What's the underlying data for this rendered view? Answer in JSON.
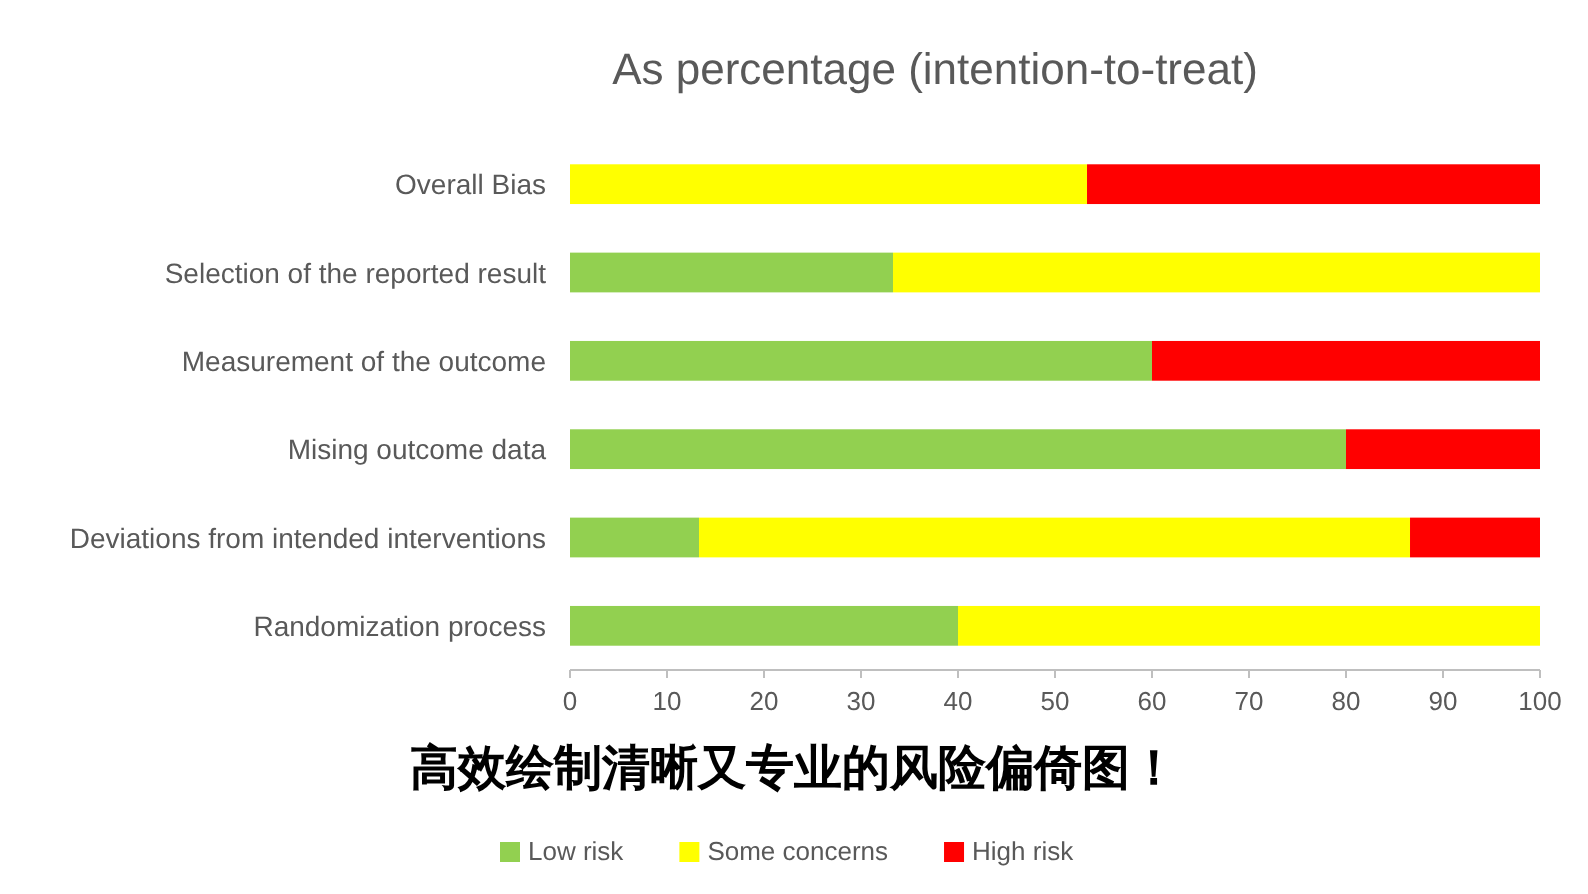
{
  "chart_data": {
    "type": "bar",
    "title": "As percentage (intention-to-treat)",
    "categories": [
      "Overall Bias",
      "Selection of the reported result",
      "Measurement of the outcome",
      "Mising outcome data",
      "Deviations from intended interventions",
      "Randomization process"
    ],
    "series": [
      {
        "name": "Low risk",
        "color": "#92d050",
        "values": [
          0,
          33.3,
          60,
          80,
          13.3,
          40
        ]
      },
      {
        "name": "Some concerns",
        "color": "#ffff00",
        "values": [
          53.3,
          66.7,
          0,
          0,
          73.3,
          60
        ]
      },
      {
        "name": "High risk",
        "color": "#ff0000",
        "values": [
          46.7,
          0,
          40,
          20,
          13.4,
          0
        ]
      }
    ],
    "stacked": true,
    "orientation": "horizontal",
    "xlim": [
      0,
      100
    ],
    "xticks": [
      0,
      10,
      20,
      30,
      40,
      50,
      60,
      70,
      80,
      90,
      100
    ],
    "grid": false,
    "legend": "bottom",
    "annotations": [
      "高效绘制清晰又专业的风险偏倚图！"
    ]
  }
}
